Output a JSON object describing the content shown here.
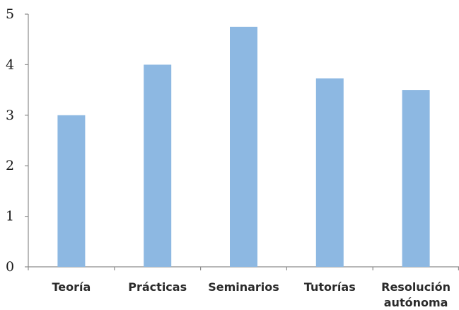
{
  "chart_data": {
    "type": "bar",
    "categories": [
      "Teoría",
      "Prácticas",
      "Seminarios",
      "Tutorías",
      "Resolución autónoma"
    ],
    "category_lines": [
      [
        "Teoría"
      ],
      [
        "Prácticas"
      ],
      [
        "Seminarios"
      ],
      [
        "Tutorías"
      ],
      [
        "Resolución",
        "autónoma"
      ]
    ],
    "values": [
      3.0,
      4.0,
      4.75,
      3.73,
      3.5
    ],
    "yticks": [
      "0",
      "1",
      "2",
      "3",
      "4",
      "5"
    ],
    "ylim": [
      0,
      5
    ],
    "grid": false,
    "legend": "none",
    "title": "",
    "xlabel": "",
    "ylabel": "",
    "bar_color": "#8db8e2",
    "axis_color": "#8c8c8c"
  }
}
